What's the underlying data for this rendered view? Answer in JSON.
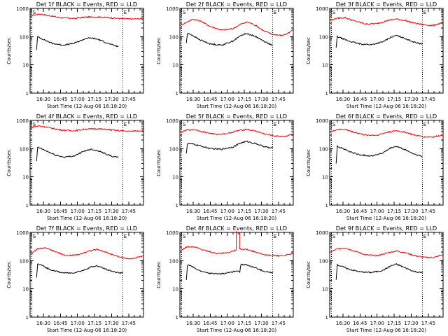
{
  "chart_data": [
    {
      "type": "line",
      "title": "Det 1f BLACK = Events, RED = LLD",
      "xlabel": "Start Time (12-Aug-06 16:18:20)",
      "ylabel": "Counts/sec",
      "yscale": "log",
      "ylim": [
        1,
        1000
      ],
      "xlim": [
        "16:18:20",
        "17:58"
      ],
      "y_tick_labels": [
        "1",
        "10",
        "100",
        "1000"
      ],
      "x_tick_labels": [
        "16:30",
        "16:45",
        "17:00",
        "17:15",
        "17:30",
        "17:45"
      ],
      "markers": [
        {
          "time": "16:20",
          "label": "S"
        },
        {
          "time": "17:40",
          "label": "E"
        }
      ],
      "series": [
        {
          "color": "#ff0000",
          "style": "noisy",
          "x": [
            "16:19",
            "16:27",
            "16:36",
            "16:45",
            "16:57",
            "17:07",
            "17:17",
            "17:27",
            "17:37",
            "17:47",
            "17:55",
            "17:58"
          ],
          "values": [
            560,
            630,
            550,
            470,
            440,
            490,
            500,
            470,
            440,
            420,
            430,
            460
          ]
        },
        {
          "color": "#000000",
          "style": "noisy",
          "x": [
            "16:24",
            "16:25",
            "16:26",
            "16:30",
            "16:38",
            "16:48",
            "16:57",
            "17:07",
            "17:12",
            "17:18",
            "17:25",
            "17:31",
            "17:34",
            "17:36"
          ],
          "values": [
            35,
            100,
            95,
            80,
            57,
            50,
            58,
            85,
            90,
            80,
            62,
            50,
            46,
            44
          ]
        }
      ]
    },
    {
      "type": "line",
      "title": "Det 2f BLACK = Events, RED = LLD",
      "xlabel": "Start Time (12-Aug-06 16:18:20)",
      "ylabel": "Counts/sec",
      "yscale": "log",
      "ylim": [
        1,
        1000
      ],
      "xlim": [
        "16:18:20",
        "17:58"
      ],
      "y_tick_labels": [
        "1",
        "10",
        "100",
        "1000"
      ],
      "x_tick_labels": [
        "16:30",
        "16:45",
        "17:00",
        "17:15",
        "17:30",
        "17:45"
      ],
      "markers": [
        {
          "time": "16:20",
          "label": "S"
        },
        {
          "time": "17:40",
          "label": "E"
        }
      ],
      "series": [
        {
          "color": "#ff0000",
          "style": "noisy",
          "x": [
            "16:19",
            "16:24",
            "16:30",
            "16:37",
            "16:45",
            "16:55",
            "17:05",
            "17:12",
            "17:18",
            "17:25",
            "17:32",
            "17:40",
            "17:48",
            "17:55",
            "17:58"
          ],
          "values": [
            250,
            320,
            420,
            350,
            230,
            170,
            190,
            280,
            330,
            250,
            160,
            120,
            110,
            140,
            190
          ]
        },
        {
          "color": "#000000",
          "style": "noisy",
          "x": [
            "16:24",
            "16:25",
            "16:28",
            "16:35",
            "16:45",
            "16:55",
            "17:05",
            "17:12",
            "17:17",
            "17:25",
            "17:32",
            "17:38",
            "17:40"
          ],
          "values": [
            60,
            130,
            120,
            80,
            55,
            50,
            70,
            110,
            130,
            100,
            70,
            52,
            48
          ]
        }
      ]
    },
    {
      "type": "line",
      "title": "Det 3f BLACK = Events, RED = LLD",
      "xlabel": "Start Time (12-Aug-06 16:18:20)",
      "ylabel": "Counts/sec",
      "yscale": "log",
      "ylim": [
        1,
        1000
      ],
      "xlim": [
        "16:18:20",
        "17:58"
      ],
      "y_tick_labels": [
        "1",
        "10",
        "100",
        "1000"
      ],
      "x_tick_labels": [
        "16:30",
        "16:45",
        "17:00",
        "17:15",
        "17:30",
        "17:45"
      ],
      "markers": [
        {
          "time": "16:20",
          "label": "S"
        },
        {
          "time": "17:40",
          "label": "E"
        }
      ],
      "series": [
        {
          "color": "#ff0000",
          "style": "noisy",
          "x": [
            "16:19",
            "16:25",
            "16:32",
            "16:40",
            "16:50",
            "17:00",
            "17:10",
            "17:17",
            "17:25",
            "17:33",
            "17:42",
            "17:50",
            "17:58"
          ],
          "values": [
            380,
            450,
            470,
            360,
            280,
            290,
            380,
            420,
            370,
            300,
            260,
            250,
            320
          ]
        },
        {
          "color": "#000000",
          "style": "noisy",
          "x": [
            "16:24",
            "16:25",
            "16:28",
            "16:35",
            "16:45",
            "16:55",
            "17:05",
            "17:12",
            "17:17",
            "17:25",
            "17:32",
            "17:38",
            "17:40"
          ],
          "values": [
            40,
            100,
            90,
            70,
            55,
            52,
            65,
            95,
            110,
            85,
            65,
            56,
            55
          ]
        }
      ]
    },
    {
      "type": "line",
      "title": "Det 4f BLACK = Events, RED = LLD",
      "xlabel": "Start Time (12-Aug-06 16:18:20)",
      "ylabel": "Counts/sec",
      "yscale": "log",
      "ylim": [
        1,
        1000
      ],
      "xlim": [
        "16:18:20",
        "17:58"
      ],
      "y_tick_labels": [
        "1",
        "10",
        "100",
        "1000"
      ],
      "x_tick_labels": [
        "16:30",
        "16:45",
        "17:00",
        "17:15",
        "17:30",
        "17:45"
      ],
      "markers": [
        {
          "time": "16:20",
          "label": "S"
        },
        {
          "time": "17:40",
          "label": "E"
        }
      ],
      "series": [
        {
          "color": "#ff0000",
          "style": "noisy",
          "x": [
            "16:19",
            "16:26",
            "16:35",
            "16:45",
            "16:57",
            "17:07",
            "17:17",
            "17:27",
            "17:37",
            "17:47",
            "17:58"
          ],
          "values": [
            560,
            640,
            560,
            460,
            430,
            490,
            510,
            470,
            430,
            410,
            440
          ]
        },
        {
          "color": "#000000",
          "style": "noisy",
          "x": [
            "16:24",
            "16:25",
            "16:27",
            "16:32",
            "16:40",
            "16:48",
            "16:57",
            "17:07",
            "17:12",
            "17:18",
            "17:25",
            "17:31",
            "17:36"
          ],
          "values": [
            35,
            110,
            105,
            85,
            60,
            50,
            55,
            85,
            95,
            85,
            65,
            52,
            50
          ]
        }
      ]
    },
    {
      "type": "line",
      "title": "Det 5f BLACK = Events, RED = LLD",
      "xlabel": "Start Time (12-Aug-06 16:18:20)",
      "ylabel": "Counts/sec",
      "yscale": "log",
      "ylim": [
        1,
        1000
      ],
      "xlim": [
        "16:18:20",
        "17:58"
      ],
      "y_tick_labels": [
        "1",
        "10",
        "100",
        "1000"
      ],
      "x_tick_labels": [
        "16:30",
        "16:45",
        "17:00",
        "17:15",
        "17:30",
        "17:45"
      ],
      "markers": [
        {
          "time": "16:20",
          "label": "S"
        },
        {
          "time": "17:40",
          "label": "E"
        }
      ],
      "series": [
        {
          "color": "#ff0000",
          "style": "noisy",
          "x": [
            "16:19",
            "16:25",
            "16:32",
            "16:40",
            "16:50",
            "17:00",
            "17:10",
            "17:17",
            "17:25",
            "17:33",
            "17:42",
            "17:50",
            "17:58"
          ],
          "values": [
            370,
            460,
            470,
            380,
            320,
            340,
            440,
            480,
            420,
            330,
            280,
            270,
            330
          ]
        },
        {
          "color": "#000000",
          "style": "noisy",
          "x": [
            "16:24",
            "16:25",
            "16:28",
            "16:35",
            "16:45",
            "16:55",
            "17:05",
            "17:12",
            "17:17",
            "17:25",
            "17:32",
            "17:38",
            "17:40"
          ],
          "values": [
            70,
            150,
            150,
            130,
            100,
            95,
            115,
            160,
            180,
            150,
            120,
            105,
            110
          ]
        }
      ]
    },
    {
      "type": "line",
      "title": "Det 6f BLACK = Events, RED = LLD",
      "xlabel": "Start Time (12-Aug-06 16:18:20)",
      "ylabel": "Counts/sec",
      "yscale": "log",
      "ylim": [
        1,
        1000
      ],
      "xlim": [
        "16:18:20",
        "17:58"
      ],
      "y_tick_labels": [
        "1",
        "10",
        "100",
        "1000"
      ],
      "x_tick_labels": [
        "16:30",
        "16:45",
        "17:00",
        "17:15",
        "17:30",
        "17:45"
      ],
      "markers": [
        {
          "time": "16:20",
          "label": "S"
        },
        {
          "time": "17:40",
          "label": "E"
        }
      ],
      "series": [
        {
          "color": "#ff0000",
          "style": "noisy",
          "x": [
            "16:19",
            "16:25",
            "16:32",
            "16:40",
            "16:50",
            "17:00",
            "17:10",
            "17:17",
            "17:25",
            "17:33",
            "17:42",
            "17:50",
            "17:58"
          ],
          "values": [
            390,
            470,
            480,
            380,
            300,
            300,
            390,
            430,
            380,
            300,
            260,
            260,
            310
          ]
        },
        {
          "color": "#000000",
          "style": "noisy",
          "x": [
            "16:24",
            "16:25",
            "16:28",
            "16:35",
            "16:45",
            "16:55",
            "17:05",
            "17:12",
            "17:17",
            "17:25",
            "17:32",
            "17:38",
            "17:40"
          ],
          "values": [
            30,
            120,
            110,
            80,
            60,
            55,
            70,
            105,
            120,
            90,
            65,
            55,
            50
          ]
        }
      ]
    },
    {
      "type": "line",
      "title": "Det 7f BLACK = Events, RED = LLD",
      "xlabel": "Start Time (12-Aug-06 16:18:20)",
      "ylabel": "Counts/sec",
      "yscale": "log",
      "ylim": [
        1,
        1000
      ],
      "xlim": [
        "16:18:20",
        "17:58"
      ],
      "y_tick_labels": [
        "1",
        "10",
        "100",
        "1000"
      ],
      "x_tick_labels": [
        "16:30",
        "16:45",
        "17:00",
        "17:15",
        "17:30",
        "17:45"
      ],
      "markers": [
        {
          "time": "16:20",
          "label": "S"
        },
        {
          "time": "17:40",
          "label": "E"
        }
      ],
      "series": [
        {
          "color": "#ff0000",
          "style": "noisy",
          "x": [
            "16:19",
            "16:25",
            "16:32",
            "16:40",
            "16:50",
            "17:00",
            "17:10",
            "17:17",
            "17:25",
            "17:33",
            "17:42",
            "17:50",
            "17:58"
          ],
          "values": [
            170,
            260,
            280,
            210,
            150,
            160,
            220,
            250,
            200,
            150,
            120,
            120,
            150
          ]
        },
        {
          "color": "#000000",
          "style": "noisy",
          "x": [
            "16:24",
            "16:25",
            "16:28",
            "16:35",
            "16:45",
            "16:55",
            "17:05",
            "17:12",
            "17:17",
            "17:25",
            "17:32",
            "17:38",
            "17:40"
          ],
          "values": [
            25,
            75,
            70,
            50,
            38,
            36,
            45,
            60,
            65,
            50,
            40,
            37,
            38
          ]
        }
      ]
    },
    {
      "type": "line",
      "title": "Det 8f BLACK = Events, RED = LLD",
      "xlabel": "Start Time (12-Aug-06 16:18:20)",
      "ylabel": "Counts/sec",
      "yscale": "log",
      "ylim": [
        1,
        1000
      ],
      "xlim": [
        "16:18:20",
        "17:58"
      ],
      "y_tick_labels": [
        "1",
        "10",
        "100",
        "1000"
      ],
      "x_tick_labels": [
        "16:30",
        "16:45",
        "17:00",
        "17:15",
        "17:30",
        "17:45"
      ],
      "markers": [
        {
          "time": "16:20",
          "label": "S"
        },
        {
          "time": "17:40",
          "label": "E"
        }
      ],
      "series": [
        {
          "color": "#ff0000",
          "style": "noisy",
          "x": [
            "16:19",
            "16:25",
            "16:32",
            "16:40",
            "16:50",
            "17:00",
            "17:08",
            "17:08",
            "17:11",
            "17:11",
            "17:17",
            "17:25",
            "17:33",
            "17:42",
            "17:50",
            "17:58"
          ],
          "values": [
            230,
            310,
            310,
            230,
            180,
            190,
            240,
            1000,
            1000,
            260,
            250,
            200,
            160,
            150,
            150,
            180
          ]
        },
        {
          "color": "#000000",
          "style": "noisy",
          "x": [
            "16:24",
            "16:25",
            "16:28",
            "16:35",
            "16:45",
            "16:55",
            "17:05",
            "17:08",
            "17:11",
            "17:12",
            "17:17",
            "17:25",
            "17:32",
            "17:38",
            "17:40"
          ],
          "values": [
            20,
            70,
            65,
            45,
            35,
            34,
            40,
            45,
            40,
            75,
            70,
            55,
            42,
            38,
            36
          ]
        }
      ]
    },
    {
      "type": "line",
      "title": "Det 9f BLACK = Events, RED = LLD",
      "xlabel": "Start Time (12-Aug-06 16:18:20)",
      "ylabel": "Counts/sec",
      "yscale": "log",
      "ylim": [
        1,
        1000
      ],
      "xlim": [
        "16:18:20",
        "17:58"
      ],
      "y_tick_labels": [
        "1",
        "10",
        "100",
        "1000"
      ],
      "x_tick_labels": [
        "16:30",
        "16:45",
        "17:00",
        "17:15",
        "17:30",
        "17:45"
      ],
      "markers": [
        {
          "time": "16:20",
          "label": "S"
        },
        {
          "time": "17:40",
          "label": "E"
        }
      ],
      "series": [
        {
          "color": "#ff0000",
          "style": "noisy",
          "x": [
            "16:19",
            "16:25",
            "16:32",
            "16:40",
            "16:50",
            "17:00",
            "17:10",
            "17:17",
            "17:25",
            "17:33",
            "17:42",
            "17:50",
            "17:58"
          ],
          "values": [
            200,
            260,
            280,
            220,
            160,
            150,
            190,
            220,
            190,
            150,
            130,
            130,
            160
          ]
        },
        {
          "color": "#000000",
          "style": "noisy",
          "x": [
            "16:24",
            "16:25",
            "16:28",
            "16:35",
            "16:45",
            "16:55",
            "17:05",
            "17:12",
            "17:17",
            "17:25",
            "17:32",
            "17:38",
            "17:40"
          ],
          "values": [
            22,
            70,
            65,
            50,
            40,
            38,
            45,
            65,
            75,
            55,
            42,
            38,
            38
          ]
        }
      ]
    }
  ]
}
